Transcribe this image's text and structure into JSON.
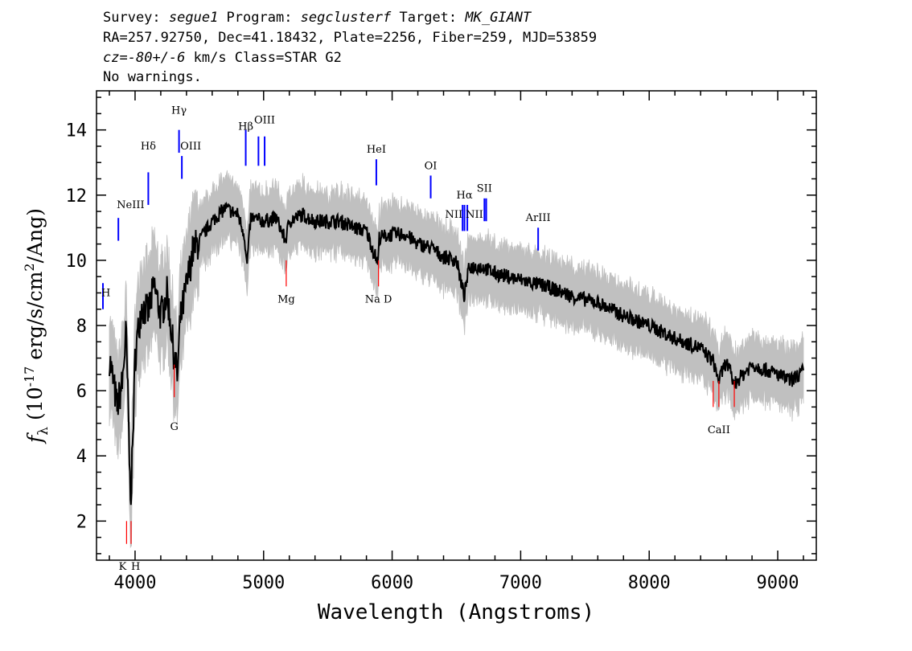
{
  "header": {
    "survey_label": "Survey: ",
    "survey": "segue1",
    "program_label": " Program: ",
    "program": "segclusterf",
    "target_label": " Target: ",
    "target": "MK_GIANT",
    "line2": "RA=257.92750, Dec=41.18432, Plate=2256, Fiber=259, MJD=53859",
    "cz": "cz",
    "cz_eq": "=",
    "cz_val": "-80+/-6",
    "cz_rest": " km/s Class=STAR G2",
    "line4": "No warnings."
  },
  "chart_data": {
    "type": "line",
    "xlabel": "Wavelength (Angstroms)",
    "ylabel_f": "f",
    "ylabel_sub": "λ",
    "ylabel_rest": " (10",
    "ylabel_exp": "-17",
    "ylabel_units": " erg/s/cm",
    "ylabel_sq": "2",
    "ylabel_end": "/Ang)",
    "xlim": [
      3700,
      9300
    ],
    "ylim": [
      0.8,
      15.2
    ],
    "x_ticks": [
      "4000",
      "5000",
      "6000",
      "7000",
      "8000",
      "9000"
    ],
    "y_ticks": [
      "2",
      "4",
      "6",
      "8",
      "10",
      "12",
      "14"
    ],
    "colors": {
      "spectrum": "#000000",
      "error": "#c0c0c0",
      "emission": "#0000ff",
      "absorption": "#ff0000"
    },
    "spectrum": {
      "x": [
        3800,
        3830,
        3860,
        3900,
        3930,
        3950,
        3960,
        3970,
        3990,
        4000,
        4020,
        4050,
        4100,
        4150,
        4200,
        4250,
        4300,
        4330,
        4350,
        4400,
        4450,
        4500,
        4600,
        4700,
        4800,
        4850,
        4870,
        4900,
        5000,
        5100,
        5170,
        5200,
        5300,
        5400,
        5500,
        5600,
        5700,
        5800,
        5890,
        5900,
        6000,
        6100,
        6200,
        6300,
        6400,
        6500,
        6560,
        6600,
        6700,
        6800,
        6900,
        7000,
        7100,
        7200,
        7400,
        7600,
        7800,
        8000,
        8200,
        8400,
        8500,
        8540,
        8600,
        8660,
        8800,
        9000,
        9100,
        9200
      ],
      "y": [
        7.0,
        6.3,
        5.5,
        6.2,
        7.8,
        5.0,
        3.2,
        2.9,
        5.5,
        7.0,
        7.7,
        8.6,
        8.4,
        9.2,
        8.3,
        9.0,
        7.2,
        6.4,
        8.1,
        9.2,
        10.3,
        10.6,
        11.2,
        11.6,
        11.4,
        10.8,
        9.8,
        11.3,
        11.2,
        11.3,
        10.6,
        11.2,
        11.4,
        11.2,
        11.2,
        11.2,
        11.0,
        10.9,
        9.9,
        10.7,
        10.8,
        10.8,
        10.5,
        10.4,
        10.1,
        10.0,
        8.9,
        9.8,
        9.8,
        9.6,
        9.5,
        9.4,
        9.3,
        9.2,
        8.9,
        8.7,
        8.3,
        8.0,
        7.6,
        7.3,
        6.9,
        6.3,
        6.9,
        6.2,
        6.8,
        6.5,
        6.3,
        6.6
      ]
    },
    "emission_lines": [
      {
        "label": "H",
        "x": 3750
      },
      {
        "label": "NeIII",
        "x": 3870
      },
      {
        "label": "Hδ",
        "x": 4103
      },
      {
        "label": "Hγ",
        "x": 4342
      },
      {
        "label": "OIII",
        "x": 4364
      },
      {
        "label": "Hβ",
        "x": 4861
      },
      {
        "label": "OIII",
        "x": 4960
      },
      {
        "label": "OIII",
        "x": 5008
      },
      {
        "label": "HeI",
        "x": 5877
      },
      {
        "label": "OI",
        "x": 6300
      },
      {
        "label": "NII",
        "x": 6548
      },
      {
        "label": "Hα",
        "x": 6563
      },
      {
        "label": "NII",
        "x": 6585
      },
      {
        "label": "SII",
        "x": 6718
      },
      {
        "label": "SII",
        "x": 6732
      },
      {
        "label": "ArIII",
        "x": 7136
      }
    ],
    "absorption_lines": [
      {
        "label": "K",
        "x": 3934
      },
      {
        "label": "H",
        "x": 3969
      },
      {
        "label": "G",
        "x": 4305
      },
      {
        "label": "Mg",
        "x": 5176
      },
      {
        "label": "Na D",
        "x": 5894
      },
      {
        "label": "CaII",
        "x": 8498
      },
      {
        "label": "CaII",
        "x": 8542
      },
      {
        "label": "CaII",
        "x": 8662
      }
    ]
  }
}
